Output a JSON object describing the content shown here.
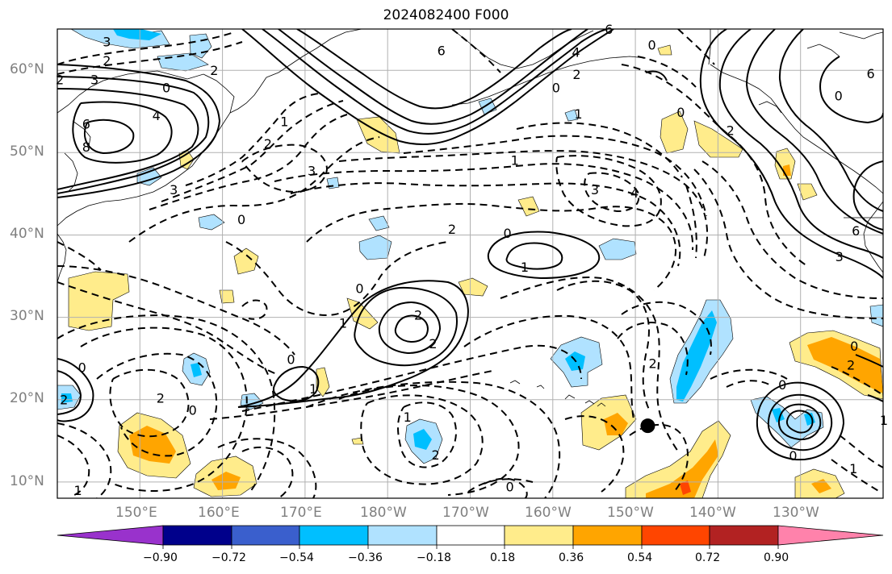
{
  "title": "2024082400 F000",
  "latitude_labels": [
    "60°N",
    "50°N",
    "40°N",
    "30°N",
    "20°N",
    "10°N"
  ],
  "longitude_labels": [
    "150°E",
    "160°E",
    "170°E",
    "180°W",
    "170°W",
    "160°W",
    "150°W",
    "140°W",
    "130°W"
  ],
  "colorbar": {
    "ticks": [
      "−0.90",
      "−0.72",
      "−0.54",
      "−0.36",
      "−0.18",
      "0.18",
      "0.36",
      "0.54",
      "0.72",
      "0.90"
    ],
    "colors": [
      "#9932cc",
      "#00008b",
      "#3a5fcd",
      "#00bfff",
      "#b0e2ff",
      "#ffffff",
      "#ffec8b",
      "#ffa500",
      "#ff4500",
      "#b22222",
      "#ff82ab"
    ]
  },
  "contour_labels": [
    {
      "text": "3",
      "lon": 146,
      "lat": 63.5
    },
    {
      "text": "2",
      "lon": 146,
      "lat": 61.2
    },
    {
      "text": "2",
      "lon": 140.3,
      "lat": 58.9
    },
    {
      "text": "3",
      "lon": 144.5,
      "lat": 58.9
    },
    {
      "text": "0",
      "lon": 153.2,
      "lat": 57.9
    },
    {
      "text": "2",
      "lon": 159,
      "lat": 60
    },
    {
      "text": "4",
      "lon": 152,
      "lat": 54.5
    },
    {
      "text": "6",
      "lon": 143.5,
      "lat": 53.5
    },
    {
      "text": "8",
      "lon": 143.5,
      "lat": 50.7
    },
    {
      "text": "1",
      "lon": 167.5,
      "lat": 53.8
    },
    {
      "text": "2",
      "lon": 165.5,
      "lat": 51.1
    },
    {
      "text": "3",
      "lon": 170.8,
      "lat": 47.8
    },
    {
      "text": "3",
      "lon": 154.1,
      "lat": 45.5
    },
    {
      "text": "0",
      "lon": 162.3,
      "lat": 41.9
    },
    {
      "text": "6",
      "lon": 186.5,
      "lat": 62.4
    },
    {
      "text": "6",
      "lon": 206.8,
      "lat": 65
    },
    {
      "text": "4",
      "lon": 202.8,
      "lat": 62.2
    },
    {
      "text": "2",
      "lon": 202.9,
      "lat": 59.5
    },
    {
      "text": "0",
      "lon": 200.4,
      "lat": 57.9
    },
    {
      "text": "1",
      "lon": 203.1,
      "lat": 54.7
    },
    {
      "text": "1",
      "lon": 195.4,
      "lat": 49.1
    },
    {
      "text": "3",
      "lon": 205.1,
      "lat": 45.5
    },
    {
      "text": "4",
      "lon": 209.9,
      "lat": 45.1
    },
    {
      "text": "0",
      "lon": 212,
      "lat": 63.1
    },
    {
      "text": "0",
      "lon": 215.5,
      "lat": 54.9
    },
    {
      "text": "6",
      "lon": 238.5,
      "lat": 59.6
    },
    {
      "text": "2",
      "lon": 221.5,
      "lat": 52.7
    },
    {
      "text": "0",
      "lon": 234.6,
      "lat": 56.9
    },
    {
      "text": "6",
      "lon": 236.7,
      "lat": 40.5
    },
    {
      "text": "3",
      "lon": 234.7,
      "lat": 37.4
    },
    {
      "text": "2",
      "lon": 187.8,
      "lat": 40.7
    },
    {
      "text": "0",
      "lon": 194.5,
      "lat": 40.2
    },
    {
      "text": "1",
      "lon": 196.6,
      "lat": 36.1
    },
    {
      "text": "0",
      "lon": 176.6,
      "lat": 33.5
    },
    {
      "text": "2",
      "lon": 183.7,
      "lat": 30.3
    },
    {
      "text": "2",
      "lon": 185.5,
      "lat": 26.8
    },
    {
      "text": "1",
      "lon": 174.6,
      "lat": 29.3
    },
    {
      "text": "0",
      "lon": 168.3,
      "lat": 24.9
    },
    {
      "text": "1",
      "lon": 171,
      "lat": 21.3
    },
    {
      "text": "2",
      "lon": 152.5,
      "lat": 20.2
    },
    {
      "text": "0",
      "lon": 156.4,
      "lat": 18.7
    },
    {
      "text": "0",
      "lon": 143,
      "lat": 23.9
    },
    {
      "text": "2",
      "lon": 140.8,
      "lat": 20
    },
    {
      "text": "1",
      "lon": 142.5,
      "lat": 9
    },
    {
      "text": "1",
      "lon": 182.4,
      "lat": 17.9
    },
    {
      "text": "2",
      "lon": 185.8,
      "lat": 13.3
    },
    {
      "text": "0",
      "lon": 194.8,
      "lat": 9.4
    },
    {
      "text": "2",
      "lon": 212.1,
      "lat": 24.4
    },
    {
      "text": "0",
      "lon": 227.8,
      "lat": 21.8
    },
    {
      "text": "0",
      "lon": 236.5,
      "lat": 26.5
    },
    {
      "text": "2",
      "lon": 236.1,
      "lat": 24.2
    },
    {
      "text": "1",
      "lon": 240.1,
      "lat": 17.5
    },
    {
      "text": "0",
      "lon": 229.1,
      "lat": 13.2
    },
    {
      "text": "1",
      "lon": 236.4,
      "lat": 11.6
    }
  ],
  "marker": {
    "lon": 211.5,
    "lat": 16.8
  }
}
